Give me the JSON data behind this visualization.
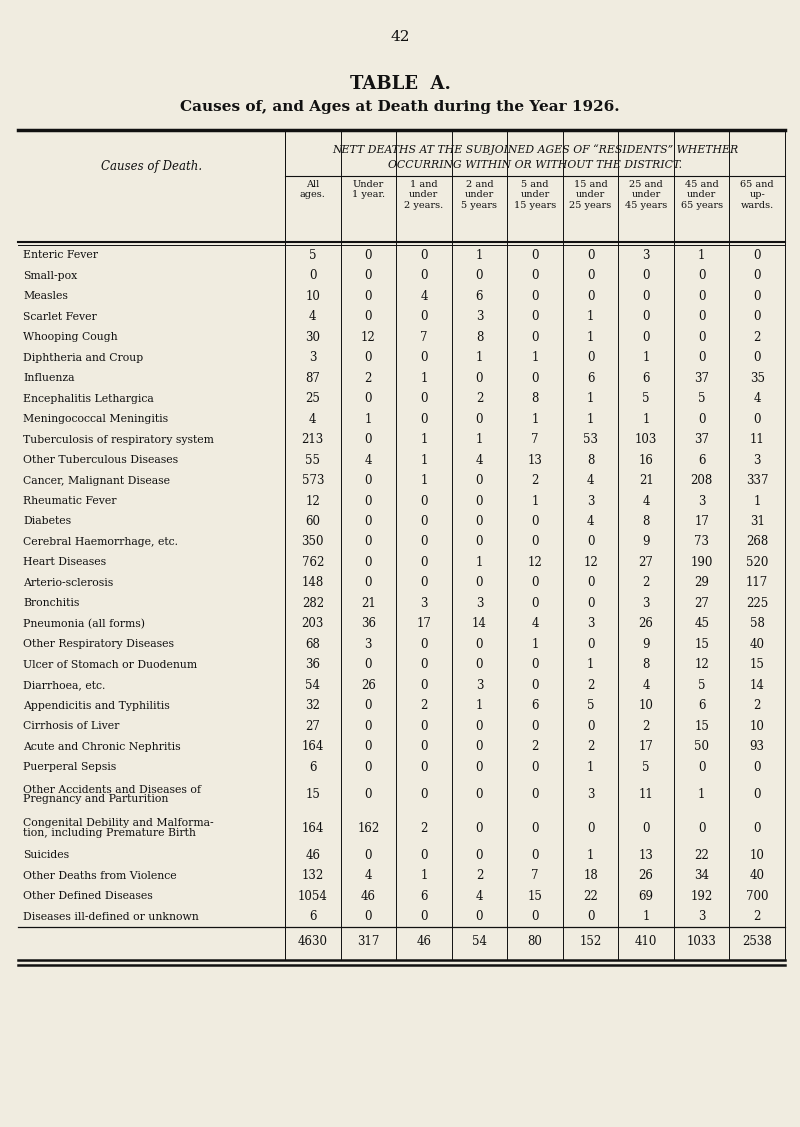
{
  "page_number": "42",
  "table_title": "TABLE  A.",
  "table_subtitle": "Causes of, and Ages at Death during the Year 1926.",
  "header_line1": "NETT DEATHS AT THE SUBJOINED AGES OF “RESIDENTS” WHETHER",
  "header_line2": "OCCURRING WITHIN OR WITHOUT THE DISTRICT.",
  "col_header_left": "Causes of Death.",
  "col_headers": [
    "All\nages.",
    "Under\n1 year.",
    "1 and\nunder\n2 years.",
    "2 and\nunder\n5 years",
    "5 and\nunder\n15 years",
    "15 and\nunder\n25 years",
    "25 and\nunder\n45 years",
    "45 and\nunder\n65 years",
    "65 and\nup-\nwards."
  ],
  "rows": [
    [
      "Enteric Fever",
      "......",
      "......",
      "......",
      5,
      0,
      0,
      1,
      0,
      0,
      3,
      1,
      0
    ],
    [
      "Small-pox",
      "......",
      "......",
      "......",
      0,
      0,
      0,
      0,
      0,
      0,
      0,
      0,
      0
    ],
    [
      "Measles",
      "......",
      "......",
      "......",
      10,
      0,
      4,
      6,
      0,
      0,
      0,
      0,
      0
    ],
    [
      "Scarlet Fever",
      "......",
      "......",
      "......",
      4,
      0,
      0,
      3,
      0,
      1,
      0,
      0,
      0
    ],
    [
      "Whooping Cough",
      "......",
      "......",
      "......",
      30,
      12,
      7,
      8,
      0,
      1,
      0,
      0,
      2
    ],
    [
      "Diphtheria and Croup",
      "......",
      "......",
      "......",
      3,
      0,
      0,
      1,
      1,
      0,
      1,
      0,
      0
    ],
    [
      "Influenza",
      "......",
      "......",
      "......",
      87,
      2,
      1,
      0,
      0,
      6,
      6,
      37,
      35
    ],
    [
      "Encephalitis Lethargica",
      "......",
      "......",
      "......",
      25,
      0,
      0,
      2,
      8,
      1,
      5,
      5,
      4
    ],
    [
      "Meningococcal Meningitis",
      "......",
      "......",
      "......",
      4,
      1,
      0,
      0,
      1,
      1,
      1,
      0,
      0
    ],
    [
      "Tuberculosis of respiratory system",
      "......",
      "......",
      "......",
      213,
      0,
      1,
      1,
      7,
      53,
      103,
      37,
      11
    ],
    [
      "Other Tuberculous Diseases",
      "......",
      "......",
      "......",
      55,
      4,
      1,
      4,
      13,
      8,
      16,
      6,
      3
    ],
    [
      "Cancer, Malignant Disease",
      "......",
      "......",
      "......",
      573,
      0,
      1,
      0,
      2,
      4,
      21,
      208,
      337
    ],
    [
      "Rheumatic Fever",
      "......",
      "......",
      "......",
      12,
      0,
      0,
      0,
      1,
      3,
      4,
      3,
      1
    ],
    [
      "Diabetes",
      "......",
      "......",
      "......",
      60,
      0,
      0,
      0,
      0,
      4,
      8,
      17,
      31
    ],
    [
      "Cerebral Haemorrhage, etc.",
      "......",
      "......",
      "......",
      350,
      0,
      0,
      0,
      0,
      0,
      9,
      73,
      268
    ],
    [
      "Heart Diseases",
      "......",
      "......",
      "......",
      762,
      0,
      0,
      1,
      12,
      12,
      27,
      190,
      520
    ],
    [
      "Arterio-sclerosis",
      "......",
      "......",
      "......",
      148,
      0,
      0,
      0,
      0,
      0,
      2,
      29,
      117
    ],
    [
      "Bronchitis",
      "......",
      "......",
      "......",
      282,
      21,
      3,
      3,
      0,
      0,
      3,
      27,
      225
    ],
    [
      "Pneumonia (all forms)",
      "......",
      "......",
      "......",
      203,
      36,
      17,
      14,
      4,
      3,
      26,
      45,
      58
    ],
    [
      "Other Respiratory Diseases",
      "......",
      "......",
      "......",
      68,
      3,
      0,
      0,
      1,
      0,
      9,
      15,
      40
    ],
    [
      "Ulcer of Stomach or Duodenum",
      "......",
      "......",
      "......",
      36,
      0,
      0,
      0,
      0,
      1,
      8,
      12,
      15
    ],
    [
      "Diarrhoea, etc.",
      "......",
      "......",
      "......",
      54,
      26,
      0,
      3,
      0,
      2,
      4,
      5,
      14
    ],
    [
      "Appendicitis and Typhilitis",
      "......",
      "......",
      "......",
      32,
      0,
      2,
      1,
      6,
      5,
      10,
      6,
      2
    ],
    [
      "Cirrhosis of Liver",
      "......",
      "......",
      "......",
      27,
      0,
      0,
      0,
      0,
      0,
      2,
      15,
      10
    ],
    [
      "Acute and Chronic Nephritis",
      "......",
      "......",
      "......",
      164,
      0,
      0,
      0,
      2,
      2,
      17,
      50,
      93
    ],
    [
      "Puerperal Sepsis",
      "......",
      "......",
      "......",
      6,
      0,
      0,
      0,
      0,
      1,
      5,
      0,
      0
    ],
    [
      "Other Accidents and Diseases of\n  Pregnancy and Parturition",
      "......",
      "......",
      "......",
      15,
      0,
      0,
      0,
      0,
      3,
      11,
      1,
      0
    ],
    [
      "Congenital Debility and Malforma-\n  tion, including Premature Birth",
      "......",
      "......",
      "......",
      164,
      162,
      2,
      0,
      0,
      0,
      0,
      0,
      0
    ],
    [
      "Suicides",
      "......",
      "......",
      "......",
      46,
      0,
      0,
      0,
      0,
      1,
      13,
      22,
      10
    ],
    [
      "Other Deaths from Violence",
      "......",
      "......",
      "......",
      132,
      4,
      1,
      2,
      7,
      18,
      26,
      34,
      40
    ],
    [
      "Other Defined Diseases",
      "......",
      "......",
      "......",
      1054,
      46,
      6,
      4,
      15,
      22,
      69,
      192,
      700
    ],
    [
      "Diseases ill-defined or unknown",
      "......",
      "......",
      "......",
      6,
      0,
      0,
      0,
      0,
      0,
      1,
      3,
      2
    ]
  ],
  "totals": [
    4630,
    317,
    46,
    54,
    80,
    152,
    410,
    1033,
    2538
  ],
  "bg_color": "#f0ece0",
  "text_color": "#111111",
  "line_color": "#111111"
}
